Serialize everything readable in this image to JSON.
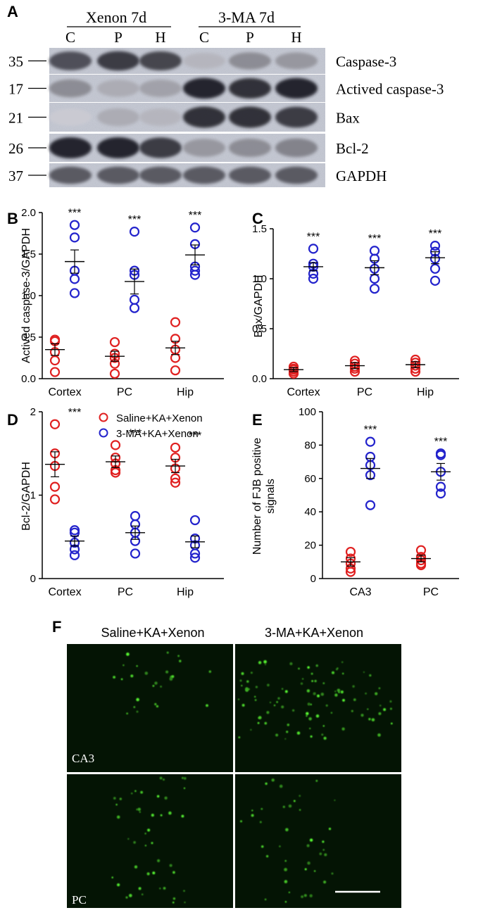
{
  "colors": {
    "saline": "#e02020",
    "threema": "#2323cc",
    "axis": "#000000",
    "scalebar": "#ffffff"
  },
  "panel_a": {
    "label": "A",
    "group1": "Xenon 7d",
    "group2": "3-MA 7d",
    "lanes": [
      "C",
      "P",
      "H",
      "C",
      "P",
      "H"
    ],
    "bands": [
      {
        "mw": "35",
        "name": "Caspase-3",
        "intensity": [
          0.75,
          0.85,
          0.8,
          0.25,
          0.45,
          0.4
        ]
      },
      {
        "mw": "17",
        "name": "Actived caspase-3",
        "intensity": [
          0.45,
          0.3,
          0.35,
          0.95,
          0.9,
          0.95
        ]
      },
      {
        "mw": "21",
        "name": "Bax",
        "intensity": [
          0.15,
          0.3,
          0.25,
          0.9,
          0.9,
          0.85
        ]
      },
      {
        "mw": "26",
        "name": "Bcl-2",
        "intensity": [
          0.95,
          0.95,
          0.85,
          0.4,
          0.45,
          0.5
        ]
      },
      {
        "mw": "37",
        "name": "GAPDH",
        "intensity": [
          0.7,
          0.7,
          0.7,
          0.7,
          0.7,
          0.7
        ]
      }
    ]
  },
  "legend": {
    "saline": "Saline+KA+Xenon",
    "threema": "3-MA+KA+Xenon"
  },
  "chart_data": [
    {
      "panel": "B",
      "type": "scatter",
      "title": "",
      "xlabel": "",
      "ylabel": "Actived caspase-3/GAPDH",
      "categories": [
        "Cortex",
        "PC",
        "Hip"
      ],
      "ylim": [
        0,
        2.0
      ],
      "yticks": [
        "0.0",
        "0.5",
        "1.0",
        "1.5",
        "2.0"
      ],
      "significance": [
        "***",
        "***",
        "***"
      ],
      "series": [
        {
          "name": "Saline+KA+Xenon",
          "mean": [
            0.35,
            0.27,
            0.37
          ],
          "sem": [
            0.07,
            0.06,
            0.08
          ],
          "points": [
            [
              0.47,
              0.45,
              0.32,
              0.22,
              0.08
            ],
            [
              0.44,
              0.3,
              0.25,
              0.18,
              0.06
            ],
            [
              0.68,
              0.48,
              0.35,
              0.25,
              0.1
            ]
          ]
        },
        {
          "name": "3-MA+KA+Xenon",
          "mean": [
            1.41,
            1.17,
            1.49
          ],
          "sem": [
            0.14,
            0.15,
            0.12
          ],
          "points": [
            [
              1.85,
              1.7,
              1.3,
              1.2,
              1.03
            ],
            [
              1.77,
              1.3,
              1.25,
              0.95,
              0.85
            ],
            [
              1.82,
              1.62,
              1.35,
              1.3,
              1.25
            ]
          ]
        }
      ]
    },
    {
      "panel": "C",
      "type": "scatter",
      "title": "",
      "xlabel": "",
      "ylabel": "Bax/GAPDH",
      "categories": [
        "Cortex",
        "PC",
        "Hip"
      ],
      "ylim": [
        0,
        1.5
      ],
      "yticks": [
        "0.0",
        "0.5",
        "1.0",
        "1.5"
      ],
      "significance": [
        "***",
        "***",
        "***"
      ],
      "series": [
        {
          "name": "Saline+KA+Xenon",
          "mean": [
            0.09,
            0.13,
            0.14
          ],
          "sem": [
            0.02,
            0.03,
            0.03
          ],
          "points": [
            [
              0.12,
              0.1,
              0.09,
              0.07,
              0.05
            ],
            [
              0.18,
              0.15,
              0.12,
              0.1,
              0.07
            ],
            [
              0.19,
              0.16,
              0.13,
              0.1,
              0.07
            ]
          ]
        },
        {
          "name": "3-MA+KA+Xenon",
          "mean": [
            1.12,
            1.11,
            1.21
          ],
          "sem": [
            0.04,
            0.07,
            0.06
          ],
          "points": [
            [
              1.3,
              1.15,
              1.12,
              1.05,
              1.0
            ],
            [
              1.28,
              1.2,
              1.1,
              1.0,
              0.9
            ],
            [
              1.33,
              1.27,
              1.2,
              1.1,
              0.98
            ]
          ]
        }
      ]
    },
    {
      "panel": "D",
      "type": "scatter",
      "title": "",
      "xlabel": "",
      "ylabel": "Bcl-2/GAPDH",
      "categories": [
        "Cortex",
        "PC",
        "Hip"
      ],
      "ylim": [
        0,
        2
      ],
      "yticks": [
        "0",
        "1",
        "2"
      ],
      "significance": [
        "***",
        "***",
        "***"
      ],
      "series": [
        {
          "name": "Saline+KA+Xenon",
          "mean": [
            1.37,
            1.4,
            1.35
          ],
          "sem": [
            0.15,
            0.07,
            0.08
          ],
          "points": [
            [
              1.85,
              1.5,
              1.35,
              1.1,
              0.95
            ],
            [
              1.6,
              1.45,
              1.38,
              1.3,
              1.27
            ],
            [
              1.57,
              1.45,
              1.32,
              1.2,
              1.15
            ]
          ]
        },
        {
          "name": "3-MA+KA+Xenon",
          "mean": [
            0.45,
            0.55,
            0.44
          ],
          "sem": [
            0.06,
            0.08,
            0.07
          ],
          "points": [
            [
              0.58,
              0.55,
              0.43,
              0.35,
              0.28
            ],
            [
              0.75,
              0.65,
              0.55,
              0.45,
              0.3
            ],
            [
              0.7,
              0.48,
              0.4,
              0.3,
              0.25
            ]
          ]
        }
      ]
    },
    {
      "panel": "E",
      "type": "scatter",
      "title": "",
      "xlabel": "",
      "ylabel": "Number of FJB positive signals",
      "ylabel_lines": [
        "Number of FJB positive",
        "signals"
      ],
      "categories": [
        "CA3",
        "PC"
      ],
      "ylim": [
        0,
        100
      ],
      "yticks": [
        "0",
        "20",
        "40",
        "60",
        "80",
        "100"
      ],
      "significance": [
        "***",
        "***"
      ],
      "series": [
        {
          "name": "Saline+KA+Xenon",
          "mean": [
            10,
            12
          ],
          "sem": [
            2.5,
            2.0
          ],
          "points": [
            [
              16,
              12,
              9,
              6,
              4
            ],
            [
              17,
              13,
              11,
              9,
              8
            ]
          ]
        },
        {
          "name": "3-MA+KA+Xenon",
          "mean": [
            66,
            64
          ],
          "sem": [
            6,
            5
          ],
          "points": [
            [
              82,
              73,
              68,
              62,
              44
            ],
            [
              75,
              74,
              64,
              55,
              51
            ]
          ]
        }
      ]
    }
  ],
  "panel_f": {
    "label": "F",
    "col1": "Saline+KA+Xenon",
    "col2": "3-MA+KA+Xenon",
    "row1": "CA3",
    "row2": "PC",
    "cell_density": [
      {
        "saline": 25,
        "threema": 95
      },
      {
        "saline": 45,
        "threema": 40
      }
    ]
  }
}
